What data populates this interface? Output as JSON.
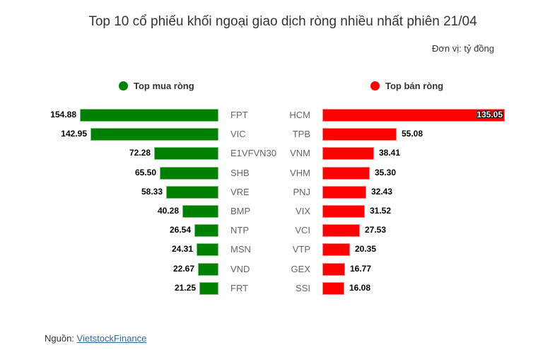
{
  "chart": {
    "title": "Top 10 cổ phiếu khối ngoại giao dịch ròng nhiều nhất phiên 21/04",
    "unit": "Đơn vị: tỷ đồng",
    "legend_buy": "Top mua ròng",
    "legend_sell": "Top bán ròng",
    "colors": {
      "buy": "#008000",
      "sell": "#ff0000"
    },
    "source_label": "Nguồn:",
    "source_link": "VietstockFinance"
  },
  "chart_data": {
    "type": "bar",
    "title": "Top 10 cổ phiếu khối ngoại giao dịch ròng nhiều nhất phiên 21/04",
    "unit": "tỷ đồng",
    "series": [
      {
        "name": "Top mua ròng",
        "color": "#008000",
        "categories": [
          "FPT",
          "VIC",
          "E1VFVN30",
          "SHB",
          "VRE",
          "BMP",
          "NTP",
          "MSN",
          "VND",
          "FRT"
        ],
        "values": [
          154.88,
          142.95,
          72.28,
          65.5,
          58.33,
          40.28,
          26.54,
          24.31,
          22.67,
          21.25
        ],
        "labels": [
          "154.88",
          "142.95",
          "72.28",
          "65.50",
          "58.33",
          "40.28",
          "26.54",
          "24.31",
          "22.67",
          "21.25"
        ]
      },
      {
        "name": "Top bán ròng",
        "color": "#ff0000",
        "categories": [
          "HCM",
          "TPB",
          "VNM",
          "VHM",
          "PNJ",
          "VIX",
          "VCI",
          "VTP",
          "GEX",
          "SSI"
        ],
        "values": [
          135.05,
          55.08,
          38.41,
          35.3,
          32.43,
          31.52,
          27.53,
          20.35,
          16.77,
          16.08
        ],
        "labels": [
          "135.05",
          "55.08",
          "38.41",
          "35.30",
          "32.43",
          "31.52",
          "27.53",
          "20.35",
          "16.77",
          "16.08"
        ]
      }
    ],
    "legend_position": "top",
    "grid": false
  }
}
